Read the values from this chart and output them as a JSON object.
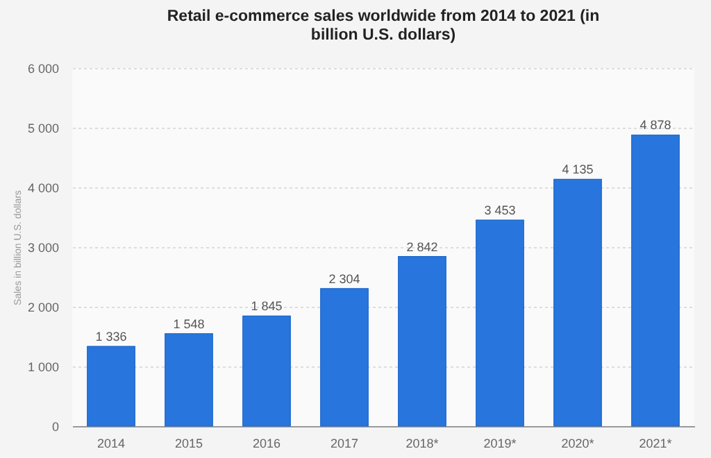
{
  "chart_data": {
    "type": "bar",
    "title": "Retail e-commerce sales worldwide from 2014 to 2021 (in billion U.S. dollars)",
    "ylabel": "Sales in billion U.S. dollars",
    "categories": [
      "2014",
      "2015",
      "2016",
      "2017",
      "2018*",
      "2019*",
      "2020*",
      "2021*"
    ],
    "values": [
      1336,
      1548,
      1845,
      2304,
      2842,
      3453,
      4135,
      4878
    ],
    "value_labels": [
      "1 336",
      "1 548",
      "1 845",
      "2 304",
      "2 842",
      "3 453",
      "4 135",
      "4 878"
    ],
    "color": "#2876dd",
    "ylim": [
      0,
      6000
    ],
    "yticks": [
      0,
      {
        "value": 1000,
        "label": "1 000"
      },
      {
        "value": 2000,
        "label": "2 000"
      },
      {
        "value": 3000,
        "label": "3 000"
      },
      {
        "value": 4000,
        "label": "4 000"
      },
      {
        "value": 5000,
        "label": "5 000"
      },
      {
        "value": 6000,
        "label": "6 000"
      }
    ],
    "grid": "y"
  }
}
